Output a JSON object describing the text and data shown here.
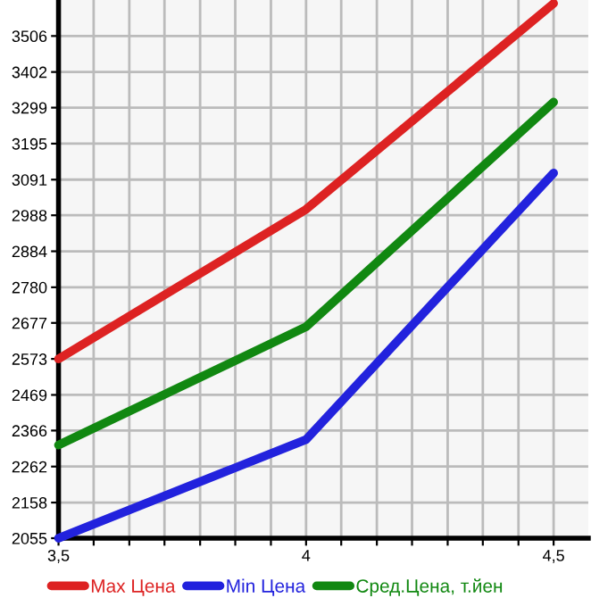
{
  "chart_data": {
    "type": "line",
    "x": [
      3.5,
      4,
      4.5
    ],
    "series": [
      {
        "name": "Max Цена",
        "color": "#dd2222",
        "values": [
          2573,
          3005,
          3600
        ]
      },
      {
        "name": "Min Цена",
        "color": "#2222dd",
        "values": [
          2055,
          2340,
          3110
        ]
      },
      {
        "name": "Сред.Цена, т.йен",
        "color": "#118811",
        "values": [
          2324,
          2666,
          3315
        ]
      }
    ],
    "xlim": [
      3.5,
      4.57
    ],
    "xticks": [
      {
        "value": 3.5,
        "label": "3,5"
      },
      {
        "value": 3.571,
        "label": null
      },
      {
        "value": 3.643,
        "label": null
      },
      {
        "value": 3.714,
        "label": null
      },
      {
        "value": 3.786,
        "label": null
      },
      {
        "value": 3.857,
        "label": null
      },
      {
        "value": 3.929,
        "label": null
      },
      4,
      {
        "value": 4.071,
        "label": null
      },
      {
        "value": 4.143,
        "label": null
      },
      {
        "value": 4.214,
        "label": null
      },
      {
        "value": 4.286,
        "label": null
      },
      {
        "value": 4.357,
        "label": null
      },
      {
        "value": 4.429,
        "label": null
      },
      {
        "value": 4.5,
        "label": "4,5"
      }
    ],
    "ylim": [
      2055,
      3610
    ],
    "yticks": [
      2055,
      2158,
      2262,
      2366,
      2469,
      2573,
      2677,
      2780,
      2884,
      2988,
      3091,
      3195,
      3299,
      3402,
      3506
    ],
    "grid": true,
    "legend": "bottom",
    "marker": "none",
    "line_style": "solid"
  }
}
